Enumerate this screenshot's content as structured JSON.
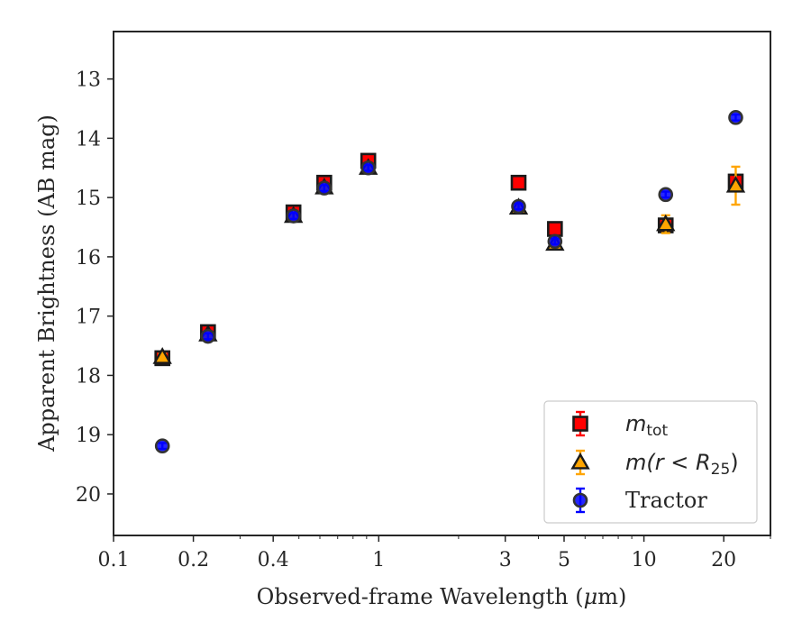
{
  "chart_data": {
    "type": "scatter",
    "xlabel_prefix": "Observed-frame Wavelength (",
    "xlabel_unit_mu": "μ",
    "xlabel_unit_rest": "m)",
    "ylabel": "Apparent Brightness (AB mag)",
    "xscale": "log",
    "xlim": [
      0.1,
      30
    ],
    "ylim": [
      20.7,
      12.2
    ],
    "y_inverted": true,
    "grid": false,
    "legend_position": "bottom-right",
    "x_ticks": [
      {
        "value": 0.1,
        "label": "0.1"
      },
      {
        "value": 0.2,
        "label": "0.2"
      },
      {
        "value": 0.4,
        "label": "0.4"
      },
      {
        "value": 1,
        "label": "1"
      },
      {
        "value": 3,
        "label": "3"
      },
      {
        "value": 5,
        "label": "5"
      },
      {
        "value": 10,
        "label": "10"
      },
      {
        "value": 20,
        "label": "20"
      }
    ],
    "y_ticks": [
      {
        "value": 13,
        "label": "13"
      },
      {
        "value": 14,
        "label": "14"
      },
      {
        "value": 15,
        "label": "15"
      },
      {
        "value": 16,
        "label": "16"
      },
      {
        "value": 17,
        "label": "17"
      },
      {
        "value": 18,
        "label": "18"
      },
      {
        "value": 19,
        "label": "19"
      },
      {
        "value": 20,
        "label": "20"
      }
    ],
    "series": [
      {
        "name": "m_tot",
        "legend_main": "m",
        "legend_sub": "tot",
        "marker": "square",
        "color": "#ff0000",
        "edge": "#1a1a1a",
        "errcolor": "#ff0000",
        "points": [
          {
            "x": 0.1528,
            "y": 17.71,
            "err": 0.05
          },
          {
            "x": 0.2271,
            "y": 17.27,
            "err": 0.05
          },
          {
            "x": 0.477,
            "y": 15.25,
            "err": 0.05
          },
          {
            "x": 0.6231,
            "y": 14.75,
            "err": 0.05
          },
          {
            "x": 0.9132,
            "y": 14.38,
            "err": 0.05
          },
          {
            "x": 3.368,
            "y": 14.75,
            "err": 0.05
          },
          {
            "x": 4.618,
            "y": 15.53,
            "err": 0.05
          },
          {
            "x": 12.08,
            "y": 15.47,
            "err": 0.05
          },
          {
            "x": 22.19,
            "y": 14.73,
            "err": 0.05
          }
        ]
      },
      {
        "name": "m(r<R25)",
        "legend_main": "m(r < R",
        "legend_sub": "25",
        "legend_tail": ")",
        "marker": "triangle",
        "color": "#ffa500",
        "edge": "#1a1a1a",
        "errcolor": "#ffa500",
        "points": [
          {
            "x": 0.1528,
            "y": 17.69,
            "err": 0.05
          },
          {
            "x": 0.2271,
            "y": 17.31,
            "err": 0.05
          },
          {
            "x": 0.477,
            "y": 15.31,
            "err": 0.05
          },
          {
            "x": 0.6231,
            "y": 14.83,
            "err": 0.05
          },
          {
            "x": 0.9132,
            "y": 14.5,
            "err": 0.05
          },
          {
            "x": 3.368,
            "y": 15.17,
            "err": 0.05
          },
          {
            "x": 4.618,
            "y": 15.78,
            "err": 0.05
          },
          {
            "x": 12.08,
            "y": 15.45,
            "err": 0.15
          },
          {
            "x": 22.19,
            "y": 14.8,
            "err": 0.32
          }
        ]
      },
      {
        "name": "Tractor",
        "legend_main": "Tractor",
        "marker": "circle",
        "color": "#0000ff",
        "edge": "#333333",
        "errcolor": "#0000ff",
        "points": [
          {
            "x": 0.1528,
            "y": 19.19,
            "err": 0.05
          },
          {
            "x": 0.2271,
            "y": 17.34,
            "err": 0.05
          },
          {
            "x": 0.477,
            "y": 15.31,
            "err": 0.05
          },
          {
            "x": 0.6231,
            "y": 14.84,
            "err": 0.05
          },
          {
            "x": 0.9132,
            "y": 14.5,
            "err": 0.05
          },
          {
            "x": 3.368,
            "y": 15.15,
            "err": 0.05
          },
          {
            "x": 4.618,
            "y": 15.74,
            "err": 0.05
          },
          {
            "x": 12.08,
            "y": 14.95,
            "err": 0.05
          },
          {
            "x": 22.19,
            "y": 13.65,
            "err": 0.05
          }
        ]
      }
    ]
  }
}
